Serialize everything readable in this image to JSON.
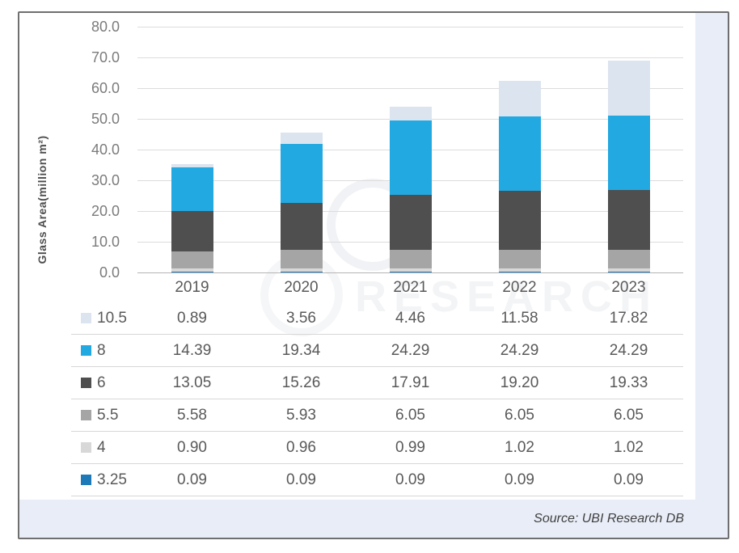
{
  "source": {
    "label": "Source: UBI Research DB"
  },
  "watermark": {
    "text": "RESEARCH"
  },
  "colors": {
    "panel_border": "#6f6f6f",
    "margin_strip": "#e9edf7",
    "gridline": "#dcdcdc",
    "axis_line": "#b5b5b5",
    "table_text": "#595959",
    "tick_text": "#7b7b7b"
  },
  "chart_data": {
    "type": "bar",
    "stacked": true,
    "title": "",
    "xlabel": "",
    "ylabel": "Glass Area(million m²)",
    "ylim": [
      0,
      80
    ],
    "yticks": [
      0,
      10,
      20,
      30,
      40,
      50,
      60,
      70,
      80
    ],
    "grid": "horizontal",
    "legend_position": "table-left-below-chart",
    "categories": [
      "2019",
      "2020",
      "2021",
      "2022",
      "2023"
    ],
    "series": [
      {
        "name": "10.5",
        "color": "#dce4f0",
        "values": [
          0.89,
          3.56,
          4.46,
          11.58,
          17.82
        ]
      },
      {
        "name": "8",
        "color": "#23a9e1",
        "values": [
          14.39,
          19.34,
          24.29,
          24.29,
          24.29
        ]
      },
      {
        "name": "6",
        "color": "#4f4f4f",
        "values": [
          13.05,
          15.26,
          17.91,
          19.2,
          19.33
        ]
      },
      {
        "name": "5.5",
        "color": "#a5a5a5",
        "values": [
          5.58,
          5.93,
          6.05,
          6.05,
          6.05
        ]
      },
      {
        "name": "4",
        "color": "#d8d8d8",
        "values": [
          0.9,
          0.96,
          0.99,
          1.02,
          1.02
        ]
      },
      {
        "name": "3.25",
        "color": "#1e79b8",
        "values": [
          0.09,
          0.09,
          0.09,
          0.09,
          0.09
        ]
      }
    ]
  }
}
